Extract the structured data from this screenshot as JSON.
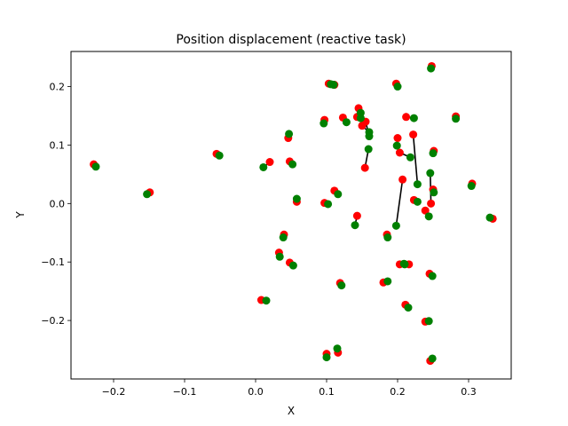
{
  "chart_data": {
    "type": "scatter",
    "title": "Position displacement (reactive task)",
    "xlabel": "X",
    "ylabel": "Y",
    "xlim": [
      -0.26,
      0.36
    ],
    "ylim": [
      -0.3,
      0.26
    ],
    "xticks": [
      -0.2,
      -0.1,
      0.0,
      0.1,
      0.2,
      0.3
    ],
    "xtick_labels": [
      "−0.2",
      "−0.1",
      "0.0",
      "0.1",
      "0.2",
      "0.3"
    ],
    "yticks": [
      -0.2,
      -0.1,
      0.0,
      0.1,
      0.2
    ],
    "ytick_labels": [
      "−0.2",
      "−0.1",
      "0.0",
      "0.1",
      "0.2"
    ],
    "grid": false,
    "legend": false,
    "start_color": "#ff0000",
    "end_color": "#008000",
    "line_color": "#000000",
    "pairs": [
      {
        "start": [
          -0.228,
          0.067
        ],
        "end": [
          -0.225,
          0.063
        ]
      },
      {
        "start": [
          -0.149,
          0.019
        ],
        "end": [
          -0.153,
          0.016
        ]
      },
      {
        "start": [
          -0.055,
          0.085
        ],
        "end": [
          -0.051,
          0.082
        ]
      },
      {
        "start": [
          0.008,
          -0.165
        ],
        "end": [
          0.015,
          -0.166
        ]
      },
      {
        "start": [
          0.02,
          0.071
        ],
        "end": [
          0.011,
          0.062
        ]
      },
      {
        "start": [
          0.033,
          -0.084
        ],
        "end": [
          0.034,
          -0.091
        ]
      },
      {
        "start": [
          0.04,
          -0.053
        ],
        "end": [
          0.039,
          -0.058
        ]
      },
      {
        "start": [
          0.046,
          0.112
        ],
        "end": [
          0.047,
          0.119
        ]
      },
      {
        "start": [
          0.048,
          0.072
        ],
        "end": [
          0.052,
          0.067
        ]
      },
      {
        "start": [
          0.048,
          -0.101
        ],
        "end": [
          0.053,
          -0.106
        ]
      },
      {
        "start": [
          0.058,
          0.003
        ],
        "end": [
          0.058,
          0.008
        ]
      },
      {
        "start": [
          0.097,
          0.143
        ],
        "end": [
          0.096,
          0.137
        ]
      },
      {
        "start": [
          0.097,
          0.001
        ],
        "end": [
          0.102,
          -0.001
        ]
      },
      {
        "start": [
          0.1,
          -0.257
        ],
        "end": [
          0.1,
          -0.263
        ]
      },
      {
        "start": [
          0.103,
          0.205
        ],
        "end": [
          0.11,
          0.203
        ]
      },
      {
        "start": [
          0.111,
          0.203
        ],
        "end": [
          0.106,
          0.204
        ]
      },
      {
        "start": [
          0.111,
          0.022
        ],
        "end": [
          0.116,
          0.016
        ]
      },
      {
        "start": [
          0.116,
          -0.255
        ],
        "end": [
          0.115,
          -0.248
        ]
      },
      {
        "start": [
          0.119,
          -0.136
        ],
        "end": [
          0.121,
          -0.14
        ]
      },
      {
        "start": [
          0.123,
          0.147
        ],
        "end": [
          0.128,
          0.139
        ]
      },
      {
        "start": [
          0.145,
          0.163
        ],
        "end": [
          0.148,
          0.155
        ]
      },
      {
        "start": [
          0.143,
          0.148
        ],
        "end": [
          0.148,
          0.146
        ]
      },
      {
        "start": [
          0.15,
          0.133
        ],
        "end": [
          0.16,
          0.122
        ]
      },
      {
        "start": [
          0.155,
          0.14
        ],
        "end": [
          0.16,
          0.115
        ]
      },
      {
        "start": [
          0.143,
          -0.021
        ],
        "end": [
          0.14,
          -0.037
        ]
      },
      {
        "start": [
          0.154,
          0.061
        ],
        "end": [
          0.159,
          0.093
        ]
      },
      {
        "start": [
          0.18,
          -0.135
        ],
        "end": [
          0.186,
          -0.133
        ]
      },
      {
        "start": [
          0.185,
          -0.053
        ],
        "end": [
          0.186,
          -0.058
        ]
      },
      {
        "start": [
          0.198,
          0.205
        ],
        "end": [
          0.2,
          0.2
        ]
      },
      {
        "start": [
          0.2,
          0.112
        ],
        "end": [
          0.199,
          0.099
        ]
      },
      {
        "start": [
          0.203,
          0.087
        ],
        "end": [
          0.218,
          0.079
        ]
      },
      {
        "start": [
          0.212,
          0.148
        ],
        "end": [
          0.223,
          0.146
        ]
      },
      {
        "start": [
          0.207,
          0.041
        ],
        "end": [
          0.198,
          -0.038
        ]
      },
      {
        "start": [
          0.203,
          -0.104
        ],
        "end": [
          0.21,
          -0.104
        ]
      },
      {
        "start": [
          0.216,
          -0.104
        ],
        "end": [
          0.209,
          -0.103
        ]
      },
      {
        "start": [
          0.211,
          -0.173
        ],
        "end": [
          0.215,
          -0.178
        ]
      },
      {
        "start": [
          0.222,
          0.118
        ],
        "end": [
          0.228,
          0.033
        ]
      },
      {
        "start": [
          0.223,
          0.006
        ],
        "end": [
          0.228,
          0.003
        ]
      },
      {
        "start": [
          0.239,
          -0.012
        ],
        "end": [
          0.244,
          -0.022
        ]
      },
      {
        "start": [
          0.239,
          -0.202
        ],
        "end": [
          0.244,
          -0.201
        ]
      },
      {
        "start": [
          0.248,
          0.235
        ],
        "end": [
          0.247,
          0.231
        ]
      },
      {
        "start": [
          0.245,
          -0.12
        ],
        "end": [
          0.249,
          -0.124
        ]
      },
      {
        "start": [
          0.246,
          -0.269
        ],
        "end": [
          0.249,
          -0.265
        ]
      },
      {
        "start": [
          0.247,
          0.0
        ],
        "end": [
          0.246,
          0.052
        ]
      },
      {
        "start": [
          0.25,
          0.024
        ],
        "end": [
          0.251,
          0.019
        ]
      },
      {
        "start": [
          0.251,
          0.09
        ],
        "end": [
          0.25,
          0.086
        ]
      },
      {
        "start": [
          0.282,
          0.149
        ],
        "end": [
          0.282,
          0.145
        ]
      },
      {
        "start": [
          0.305,
          0.034
        ],
        "end": [
          0.304,
          0.03
        ]
      },
      {
        "start": [
          0.334,
          -0.026
        ],
        "end": [
          0.33,
          -0.024
        ]
      }
    ]
  }
}
